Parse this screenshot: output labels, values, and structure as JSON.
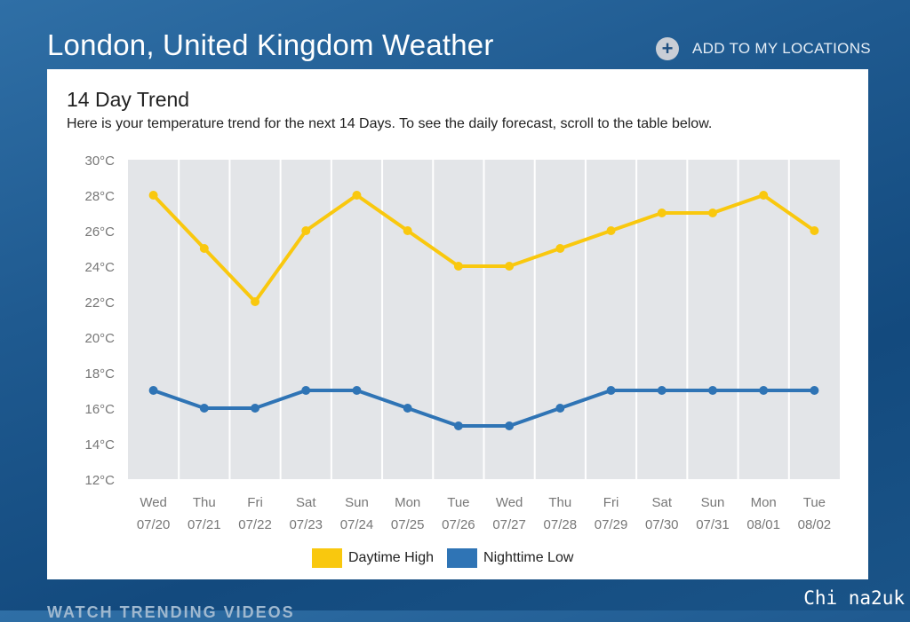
{
  "header": {
    "title": "London, United Kingdom Weather",
    "add_location_label": "ADD TO MY LOCATIONS",
    "add_icon": "plus-circle-icon"
  },
  "card": {
    "title": "14 Day Trend",
    "subtitle": "Here is your temperature trend for the next 14 Days. To see the daily forecast, scroll to the table below."
  },
  "chart_data": {
    "type": "line",
    "ylim": [
      12,
      30
    ],
    "y_ticks": [
      "30°C",
      "28°C",
      "26°C",
      "24°C",
      "22°C",
      "20°C",
      "18°C",
      "16°C",
      "14°C",
      "12°C"
    ],
    "y_tick_values": [
      30,
      28,
      26,
      24,
      22,
      20,
      18,
      16,
      14,
      12
    ],
    "categories": [
      {
        "day": "Wed",
        "date": "07/20"
      },
      {
        "day": "Thu",
        "date": "07/21"
      },
      {
        "day": "Fri",
        "date": "07/22"
      },
      {
        "day": "Sat",
        "date": "07/23"
      },
      {
        "day": "Sun",
        "date": "07/24"
      },
      {
        "day": "Mon",
        "date": "07/25"
      },
      {
        "day": "Tue",
        "date": "07/26"
      },
      {
        "day": "Wed",
        "date": "07/27"
      },
      {
        "day": "Thu",
        "date": "07/28"
      },
      {
        "day": "Fri",
        "date": "07/29"
      },
      {
        "day": "Sat",
        "date": "07/30"
      },
      {
        "day": "Sun",
        "date": "07/31"
      },
      {
        "day": "Mon",
        "date": "08/01"
      },
      {
        "day": "Tue",
        "date": "08/02"
      }
    ],
    "series": [
      {
        "name": "Daytime High",
        "color": "#f9c80e",
        "values": [
          28,
          25,
          22,
          26,
          28,
          26,
          24,
          24,
          25,
          26,
          27,
          27,
          28,
          26
        ]
      },
      {
        "name": "Nighttime Low",
        "color": "#2f74b5",
        "values": [
          17,
          16,
          16,
          17,
          17,
          16,
          15,
          15,
          16,
          17,
          17,
          17,
          17,
          17
        ]
      }
    ],
    "grid": true,
    "legend_position": "bottom-center"
  },
  "footer": {
    "heading": "WATCH TRENDING VIDEOS"
  },
  "watermark": "Chi na2uk"
}
